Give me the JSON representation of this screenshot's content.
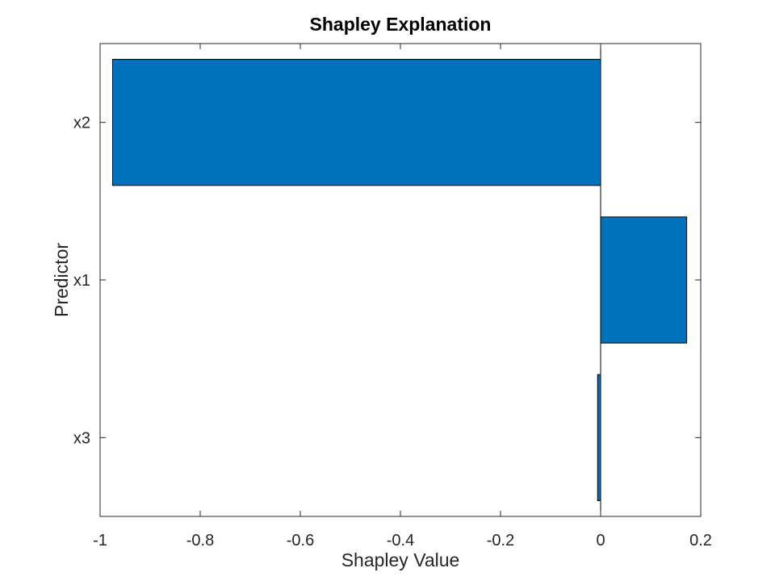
{
  "chart_data": {
    "type": "bar",
    "orientation": "horizontal",
    "title": "Shapley Explanation",
    "xlabel": "Shapley Value",
    "ylabel": "Predictor",
    "categories": [
      "x2",
      "x1",
      "x3"
    ],
    "values": [
      -0.975,
      0.172,
      -0.006
    ],
    "xlim": [
      -1,
      0.2
    ],
    "xticks": [
      -1,
      -0.8,
      -0.6,
      -0.4,
      -0.2,
      0,
      0.2
    ],
    "xtick_labels": [
      "-1",
      "-0.8",
      "-0.6",
      "-0.4",
      "-0.2",
      "0",
      "0.2"
    ],
    "bar_color": "#0072BD",
    "grid": false,
    "legend": "none"
  }
}
